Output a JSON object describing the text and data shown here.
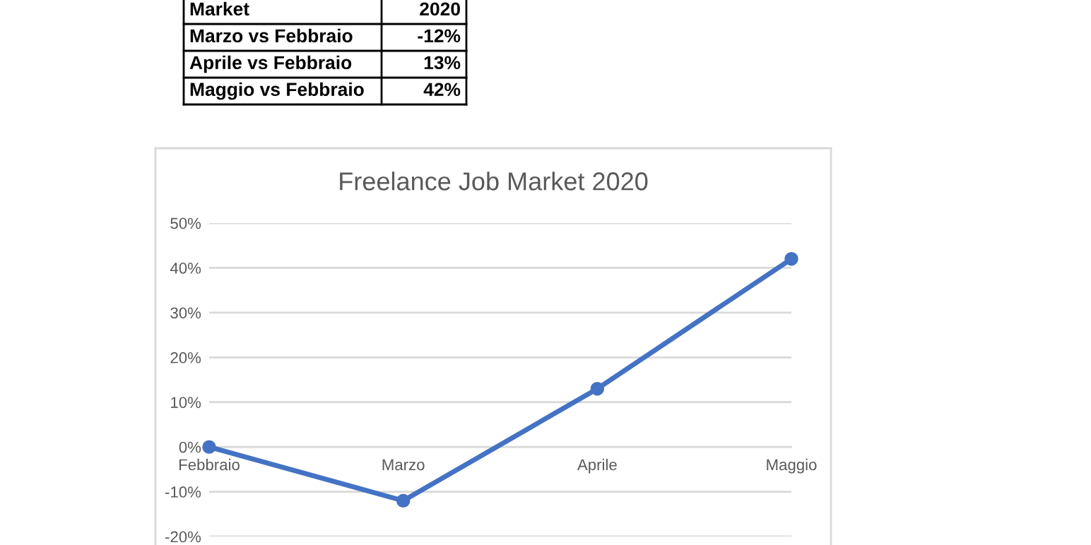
{
  "chart_data": {
    "type": "line",
    "title": "Freelance Job Market 2020",
    "categories": [
      "Febbraio",
      "Marzo",
      "Aprile",
      "Maggio"
    ],
    "series": [
      {
        "color": "#4472c4",
        "values": [
          0,
          -12,
          13,
          42
        ]
      }
    ],
    "ylim": [
      -20,
      50
    ],
    "yticks": [
      {
        "value": -20,
        "label": "-20%"
      },
      {
        "value": -10,
        "label": "-10%"
      },
      {
        "value": 0,
        "label": "0%"
      },
      {
        "value": 10,
        "label": "10%"
      },
      {
        "value": 20,
        "label": "20%"
      },
      {
        "value": 30,
        "label": "30%"
      },
      {
        "value": 40,
        "label": "40%"
      },
      {
        "value": 50,
        "label": "50%"
      }
    ],
    "grid": "y",
    "marker": "circle",
    "line_style": "solid",
    "legend": false,
    "annotations": [
      "Market",
      "2020",
      "Marzo vs Febbraio",
      "-12%",
      "Aprile vs Febbraio",
      "13%",
      "Maggio vs Febbraio",
      "42%"
    ]
  }
}
